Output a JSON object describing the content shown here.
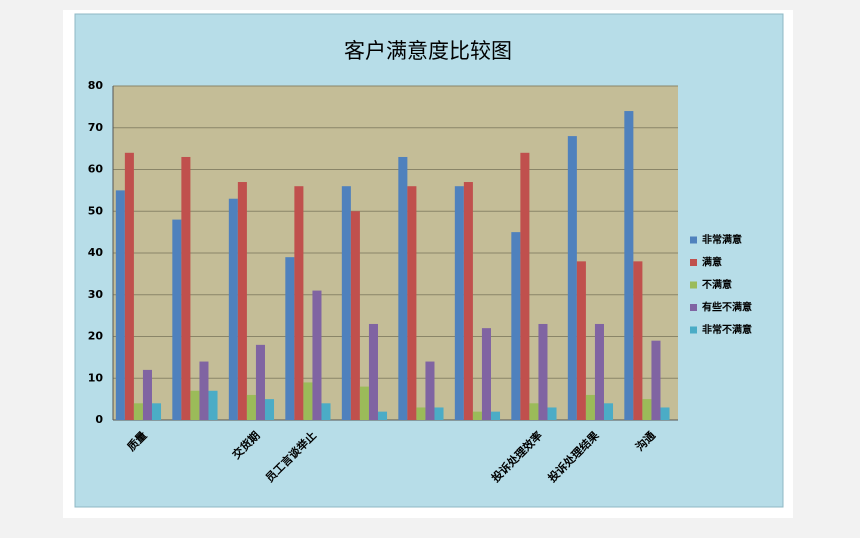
{
  "chart_data": {
    "type": "bar",
    "title": "客户满意度比较图",
    "categories": [
      "质量",
      null,
      "交货期",
      "员工言谈举止",
      null,
      null,
      null,
      "投诉处理效率",
      "投诉处理结果",
      "沟通"
    ],
    "series": [
      {
        "name": "非常满意",
        "color": "#4f81bd",
        "values": [
          55,
          48,
          53,
          39,
          56,
          63,
          56,
          45,
          68,
          74
        ]
      },
      {
        "name": "满意",
        "color": "#c0504d",
        "values": [
          64,
          63,
          57,
          56,
          50,
          56,
          57,
          64,
          38,
          38
        ]
      },
      {
        "name": "不满意",
        "color": "#9bbb59",
        "values": [
          4,
          7,
          6,
          9,
          8,
          3,
          2,
          4,
          6,
          5
        ]
      },
      {
        "name": "有些不满意",
        "color": "#8064a2",
        "values": [
          12,
          14,
          18,
          31,
          23,
          14,
          22,
          23,
          23,
          19
        ]
      },
      {
        "name": "非常不满意",
        "color": "#4bacc6",
        "values": [
          4,
          7,
          5,
          4,
          2,
          3,
          2,
          3,
          4,
          3
        ]
      }
    ],
    "ylim": [
      0,
      80
    ],
    "yticks": [
      0,
      10,
      20,
      30,
      40,
      50,
      60,
      70,
      80
    ],
    "grid": true,
    "legend": "right"
  }
}
